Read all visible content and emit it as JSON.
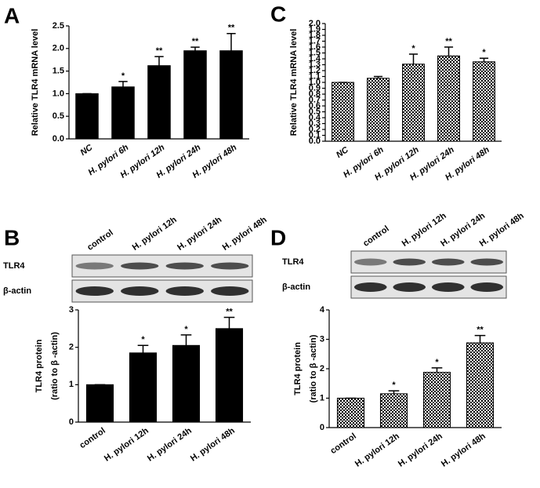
{
  "blots": [
    {
      "lanes": [
        "control",
        "H. pylori 12h",
        "H. pylori 24h",
        "H. pylori 48h"
      ],
      "rows": [
        "TLR4",
        "β-actin"
      ]
    },
    {
      "lanes": [
        "control",
        "H. pylori 12h",
        "H. pylori 24h",
        "H. pylori 48h"
      ],
      "rows": [
        "TLR4",
        "β-actin"
      ]
    }
  ],
  "chart_data": [
    {
      "type": "bar",
      "panel": "A",
      "ylabel": [
        "Relative TLR4 mRNA level"
      ],
      "italic": true,
      "pattern": "solid",
      "color": "#000000",
      "categories": [
        "NC",
        "H. pylori 6h",
        "H. pylori 12h",
        "H. pylori 24h",
        "H. pylori 48h"
      ],
      "values": [
        1.0,
        1.15,
        1.62,
        1.95,
        1.95
      ],
      "errors": [
        0,
        0.12,
        0.2,
        0.08,
        0.38
      ],
      "significance": [
        null,
        "*",
        "**",
        "**",
        "**"
      ],
      "ylim": [
        0,
        2.5
      ],
      "yticks": [
        {
          "value": 0,
          "label": "0.0"
        },
        {
          "value": 0.5,
          "label": "0.5"
        },
        {
          "value": 1,
          "label": "1.0"
        },
        {
          "value": 1.5,
          "label": "1.5"
        },
        {
          "value": 2,
          "label": "2.0"
        },
        {
          "value": 2.5,
          "label": "2.5"
        }
      ]
    },
    {
      "type": "bar",
      "panel": "B",
      "ylabel": [
        "TLR4 protein",
        "(ratio  to β -actin)"
      ],
      "italic": false,
      "pattern": "solid",
      "color": "#000000",
      "categories": [
        "control",
        "H. pylori 12h",
        "H. pylori 24h",
        "H. pylori 48h"
      ],
      "values": [
        1.0,
        1.85,
        2.05,
        2.5
      ],
      "errors": [
        0,
        0.2,
        0.28,
        0.3
      ],
      "significance": [
        null,
        "*",
        "*",
        "**"
      ],
      "ylim": [
        0,
        3
      ],
      "yticks": [
        0,
        1,
        2,
        3
      ]
    },
    {
      "type": "bar",
      "panel": "C",
      "ylabel": [
        "Relative TLR4 mRNA level"
      ],
      "italic": true,
      "pattern": "checker",
      "color": "#000000",
      "categories": [
        "NC",
        "H. pylori 6h",
        "H. pylori 12h",
        "H. pylori 24h",
        "H. pylori 48h"
      ],
      "values": [
        1.0,
        1.07,
        1.31,
        1.45,
        1.35
      ],
      "errors": [
        0,
        0.03,
        0.17,
        0.15,
        0.06
      ],
      "significance": [
        null,
        null,
        "*",
        "**",
        "*"
      ],
      "ylim": [
        0,
        2.0
      ],
      "yticks": [
        {
          "value": 0,
          "label": "0.0"
        },
        {
          "value": 0.1,
          "label": "0.1"
        },
        {
          "value": 0.2,
          "label": "0.2"
        },
        {
          "value": 0.3,
          "label": "0.3"
        },
        {
          "value": 0.4,
          "label": "0.4"
        },
        {
          "value": 0.5,
          "label": "0.5"
        },
        {
          "value": 0.6,
          "label": "0.6"
        },
        {
          "value": 0.7,
          "label": "0.7"
        },
        {
          "value": 0.8,
          "label": "0.8"
        },
        {
          "value": 0.9,
          "label": "0.9"
        },
        {
          "value": 1,
          "label": "1.0"
        },
        {
          "value": 1.1,
          "label": "1.1"
        },
        {
          "value": 1.2,
          "label": "1.2"
        },
        {
          "value": 1.3,
          "label": "1.3"
        },
        {
          "value": 1.4,
          "label": "1.4"
        },
        {
          "value": 1.5,
          "label": "1.5"
        },
        {
          "value": 1.6,
          "label": "1.6"
        },
        {
          "value": 1.7,
          "label": "1.7"
        },
        {
          "value": 1.8,
          "label": "1.8"
        },
        {
          "value": 1.9,
          "label": "1.9"
        },
        {
          "value": 2,
          "label": "2.0"
        }
      ]
    },
    {
      "type": "bar",
      "panel": "D",
      "ylabel": [
        "TLR4 protein",
        "(ratio  to β -actin)"
      ],
      "italic": false,
      "pattern": "checker",
      "color": "#000000",
      "categories": [
        "control",
        "H. pylori 12h",
        "H. pylori 24h",
        "H. pylori 48h"
      ],
      "values": [
        1.0,
        1.15,
        1.88,
        2.88
      ],
      "errors": [
        0,
        0.1,
        0.15,
        0.25
      ],
      "significance": [
        null,
        "*",
        "*",
        "**"
      ],
      "ylim": [
        0,
        4
      ],
      "yticks": [
        0,
        1,
        2,
        3,
        4
      ]
    }
  ]
}
